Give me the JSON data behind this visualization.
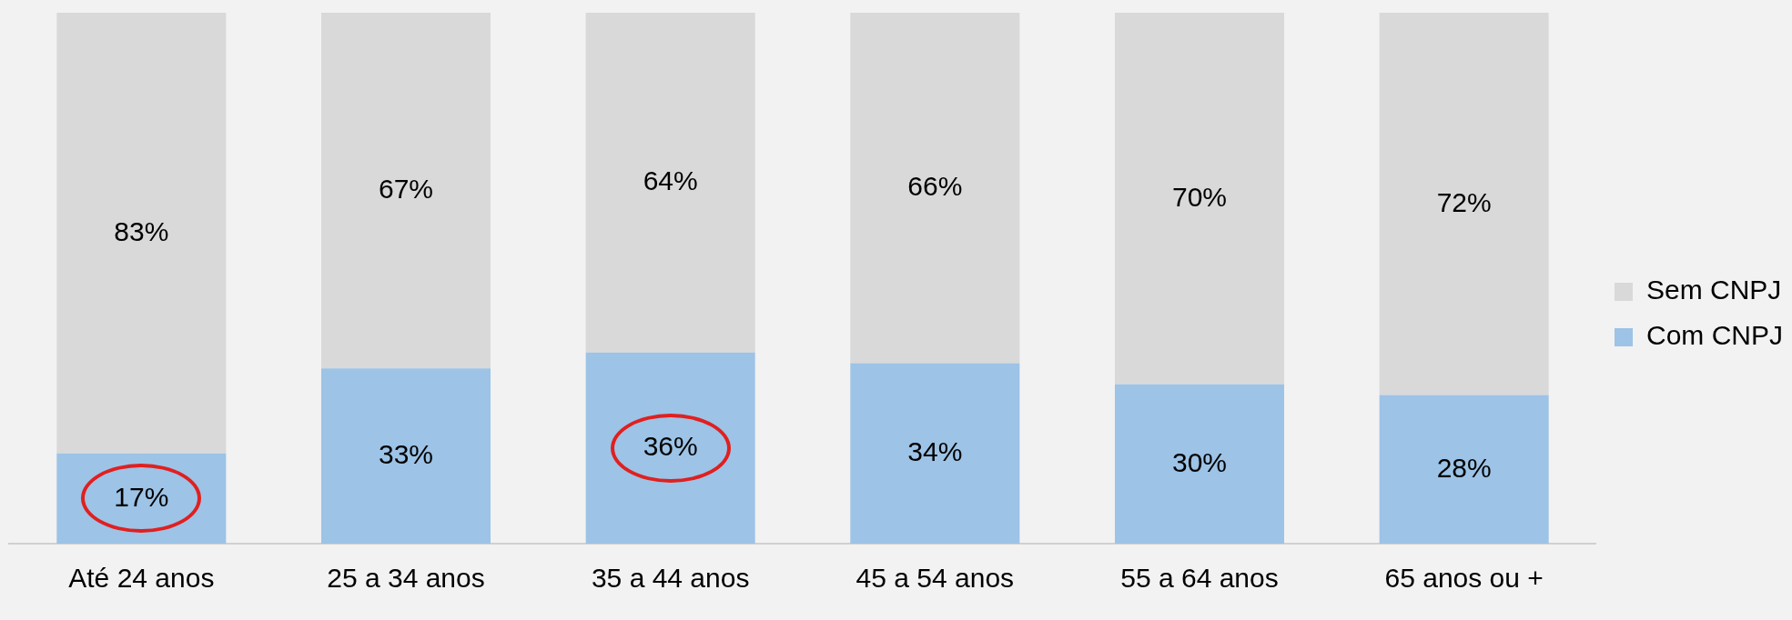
{
  "chart_data": {
    "type": "bar",
    "stacked": true,
    "categories": [
      "Até 24 anos",
      "25 a 34 anos",
      "35 a 44 anos",
      "45 a 54 anos",
      "55 a 64 anos",
      "65 anos ou +"
    ],
    "series": [
      {
        "name": "Com CNPJ",
        "color": "#9dc3e6",
        "values": [
          17,
          33,
          36,
          34,
          30,
          28
        ],
        "value_labels": [
          "17%",
          "33%",
          "36%",
          "34%",
          "30%",
          "28%"
        ]
      },
      {
        "name": "Sem CNPJ",
        "color": "#d9d9d9",
        "values": [
          83,
          67,
          64,
          66,
          70,
          72
        ],
        "value_labels": [
          "83%",
          "67%",
          "64%",
          "66%",
          "70%",
          "72%"
        ]
      }
    ],
    "legend": "right",
    "grid": false,
    "tick_labels": "x"
  }
}
